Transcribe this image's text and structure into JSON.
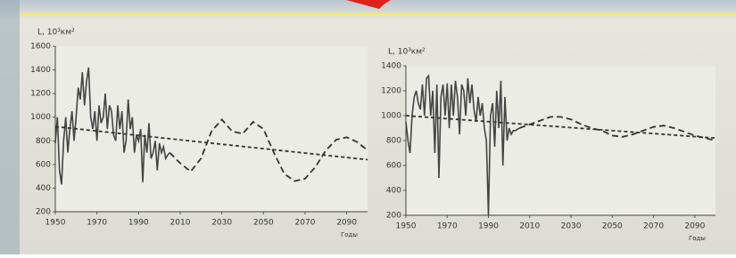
{
  "chart_data": [
    {
      "type": "line",
      "ylabel": "L, 10³км²",
      "xlabel": "Годы",
      "xlim": [
        1950,
        2100
      ],
      "ylim": [
        200,
        1600
      ],
      "xticks": [
        1950,
        1970,
        1990,
        2010,
        2030,
        2050,
        2070,
        2090
      ],
      "yticks": [
        200,
        400,
        600,
        800,
        1000,
        1200,
        1400,
        1600
      ],
      "series": [
        {
          "color": "#444",
          "style": "solid",
          "x": [
            1950,
            1951,
            1952,
            1953,
            1954,
            1955,
            1956,
            1957,
            1958,
            1959,
            1960,
            1961,
            1962,
            1963,
            1964,
            1965,
            1966,
            1967,
            1968,
            1969,
            1970,
            1971,
            1972,
            1973,
            1974,
            1975,
            1976,
            1977,
            1978,
            1979,
            1980,
            1981,
            1982,
            1983,
            1984,
            1985,
            1986,
            1987,
            1988,
            1989,
            1990,
            1991,
            1992,
            1993,
            1994,
            1995,
            1996,
            1997,
            1998,
            1999,
            2000,
            2001,
            2002,
            2003,
            2004,
            2005
          ],
          "values": [
            780,
            1000,
            550,
            430,
            800,
            1000,
            700,
            900,
            1050,
            800,
            1000,
            1250,
            1150,
            1380,
            1100,
            1300,
            1420,
            1000,
            900,
            1050,
            800,
            1100,
            950,
            1000,
            1200,
            900,
            1100,
            1050,
            850,
            800,
            1100,
            900,
            1050,
            700,
            800,
            1150,
            900,
            1000,
            700,
            850,
            800,
            900,
            450,
            850,
            700,
            950,
            650,
            700,
            800,
            550,
            780,
            700,
            750,
            650,
            680,
            700
          ]
        },
        {
          "color": "#333",
          "style": "dashed",
          "x": [
            2005,
            2010,
            2015,
            2020,
            2025,
            2030,
            2035,
            2040,
            2045,
            2050,
            2055,
            2060,
            2065,
            2070,
            2075,
            2080,
            2085,
            2090,
            2095,
            2100
          ],
          "values": [
            700,
            610,
            540,
            650,
            880,
            980,
            880,
            860,
            960,
            900,
            700,
            520,
            460,
            480,
            580,
            720,
            810,
            830,
            790,
            720
          ]
        },
        {
          "color": "#333",
          "style": "dotted",
          "x": [
            1950,
            2100
          ],
          "values": [
            920,
            640
          ]
        }
      ]
    },
    {
      "type": "line",
      "ylabel": "L, 10³км²",
      "xlabel": "Годы",
      "xlim": [
        1950,
        2100
      ],
      "ylim": [
        200,
        1400
      ],
      "xticks": [
        1950,
        1970,
        1990,
        2010,
        2030,
        2050,
        2070,
        2090
      ],
      "yticks": [
        200,
        400,
        600,
        800,
        1000,
        1200,
        1400
      ],
      "series": [
        {
          "color": "#444",
          "style": "solid",
          "x": [
            1950,
            1951,
            1952,
            1953,
            1954,
            1955,
            1956,
            1957,
            1958,
            1959,
            1960,
            1961,
            1962,
            1963,
            1964,
            1965,
            1966,
            1967,
            1968,
            1969,
            1970,
            1971,
            1972,
            1973,
            1974,
            1975,
            1976,
            1977,
            1978,
            1979,
            1980,
            1981,
            1982,
            1983,
            1984,
            1985,
            1986,
            1987,
            1988,
            1989,
            1990,
            1991,
            1992,
            1993,
            1994,
            1995,
            1996,
            1997,
            1998,
            1999,
            2000,
            2001,
            2002,
            2003,
            2004,
            2005
          ],
          "values": [
            950,
            800,
            700,
            1000,
            1150,
            1200,
            1100,
            1050,
            1250,
            1000,
            1300,
            1320,
            1000,
            1200,
            700,
            1250,
            500,
            1150,
            1250,
            1000,
            1260,
            900,
            1250,
            1000,
            1280,
            1150,
            850,
            1250,
            1200,
            1000,
            1300,
            1100,
            1250,
            1050,
            950,
            1150,
            1000,
            1100,
            900,
            800,
            200,
            1000,
            1100,
            750,
            1200,
            900,
            1280,
            600,
            1150,
            800,
            900,
            850,
            880,
            880,
            890,
            900
          ]
        },
        {
          "color": "#333",
          "style": "dashed",
          "x": [
            2005,
            2010,
            2015,
            2020,
            2025,
            2030,
            2035,
            2040,
            2045,
            2050,
            2055,
            2060,
            2065,
            2070,
            2075,
            2080,
            2085,
            2090,
            2095,
            2100
          ],
          "values": [
            900,
            930,
            960,
            990,
            990,
            970,
            930,
            900,
            880,
            840,
            830,
            850,
            880,
            910,
            920,
            900,
            870,
            840,
            820,
            800
          ]
        },
        {
          "color": "#333",
          "style": "dotted",
          "x": [
            1950,
            2100
          ],
          "values": [
            1000,
            820
          ]
        }
      ]
    }
  ]
}
